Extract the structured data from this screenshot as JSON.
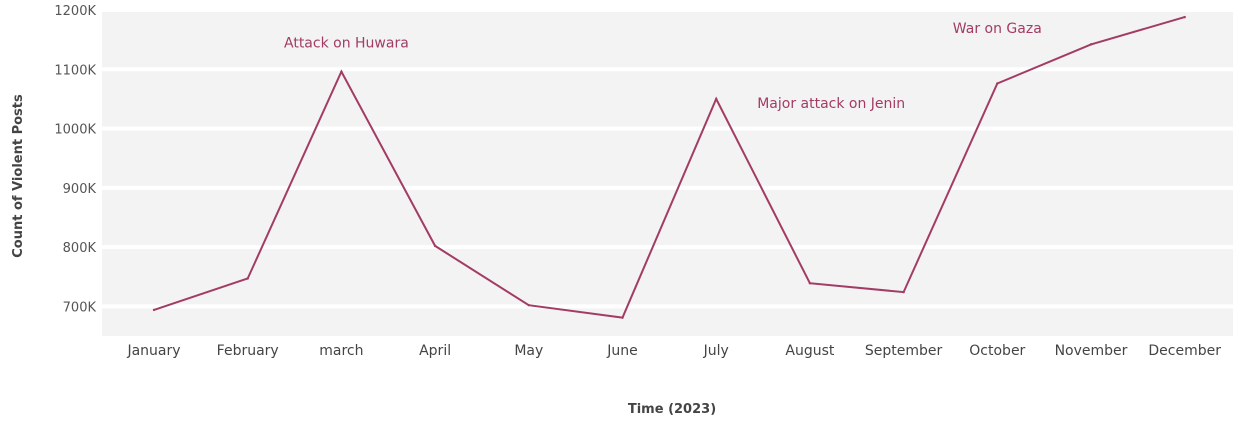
{
  "chart_data": {
    "type": "line",
    "title": "",
    "xlabel": "Time (2023)",
    "ylabel": "Count of Violent Posts",
    "categories": [
      "January",
      "February",
      "march",
      "April",
      "May",
      "June",
      "July",
      "August",
      "September",
      "October",
      "November",
      "December"
    ],
    "series": [
      {
        "values": [
          694000,
          747000,
          1096000,
          802000,
          702000,
          681000,
          1050000,
          739000,
          724000,
          1076000,
          1142000,
          1188000
        ]
      }
    ],
    "ylim": [
      650000,
      1200000
    ],
    "yticks": [
      700000,
      800000,
      900000,
      1000000,
      1100000,
      1200000
    ],
    "ytick_labels": [
      "700K",
      "800K",
      "900K",
      "1000K",
      "1100K",
      "1200K"
    ],
    "grid": "horizontal bands",
    "legend": "none",
    "line_color": "#a23c64",
    "background_color": "#f3f3f3",
    "annotations": [
      {
        "text": "Attack on Huwara",
        "category": "march",
        "y": 1145000
      },
      {
        "text": "Major attack on Jenin",
        "category": "July",
        "y": 1043000
      },
      {
        "text": "War on Gaza",
        "category": "October",
        "y": 1170000
      }
    ]
  }
}
